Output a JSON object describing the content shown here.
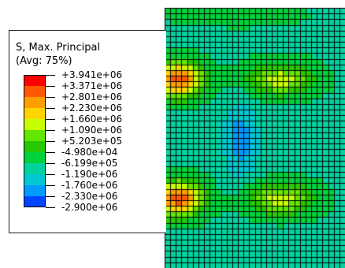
{
  "legend": {
    "title_line1": "S, Max. Principal",
    "title_line2": "(Avg: 75%)",
    "labels": [
      "+3.941e+06",
      "+3.371e+06",
      "+2.801e+06",
      "+2.230e+06",
      "+1.660e+06",
      "+1.090e+06",
      "+5.203e+05",
      "-4.980e+04",
      "-6.199e+05",
      "-1.190e+06",
      "-1.760e+06",
      "-2.330e+06",
      "-2.900e+06"
    ],
    "colors": [
      "#ff0000",
      "#ff5a00",
      "#ffa000",
      "#ffd400",
      "#c8ff00",
      "#64e600",
      "#28c800",
      "#00d23c",
      "#00d2a0",
      "#00c8d2",
      "#009bff",
      "#0046ff"
    ]
  },
  "mesh": {
    "line_color": "#000000",
    "background_color": "#11c400"
  }
}
